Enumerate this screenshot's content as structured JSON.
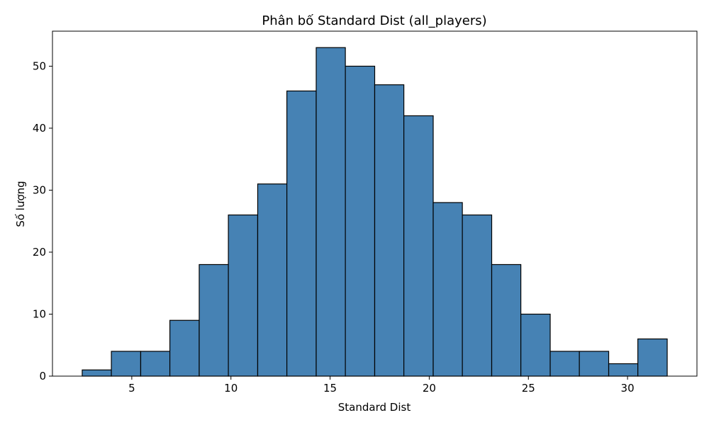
{
  "chart_data": {
    "type": "bar",
    "title": "Phân bố Standard Dist (all_players)",
    "xlabel": "Standard Dist",
    "ylabel": "Số lượng",
    "bin_edges": [
      2.5,
      3.97,
      5.45,
      6.92,
      8.4,
      9.87,
      11.35,
      12.82,
      14.3,
      15.77,
      17.25,
      18.72,
      20.2,
      21.67,
      23.15,
      24.62,
      26.1,
      27.57,
      29.05,
      30.52,
      32.0
    ],
    "values": [
      1,
      4,
      4,
      9,
      18,
      26,
      31,
      46,
      53,
      50,
      47,
      42,
      28,
      26,
      18,
      10,
      4,
      4,
      2,
      6
    ],
    "xlim": [
      1.0,
      33.5
    ],
    "ylim": [
      0,
      55.65
    ],
    "x_ticks": [
      5,
      10,
      15,
      20,
      25,
      30
    ],
    "y_ticks": [
      0,
      10,
      20,
      30,
      40,
      50
    ],
    "grid": false,
    "bar_color": "#4682b4",
    "edge_color": "#000000"
  }
}
